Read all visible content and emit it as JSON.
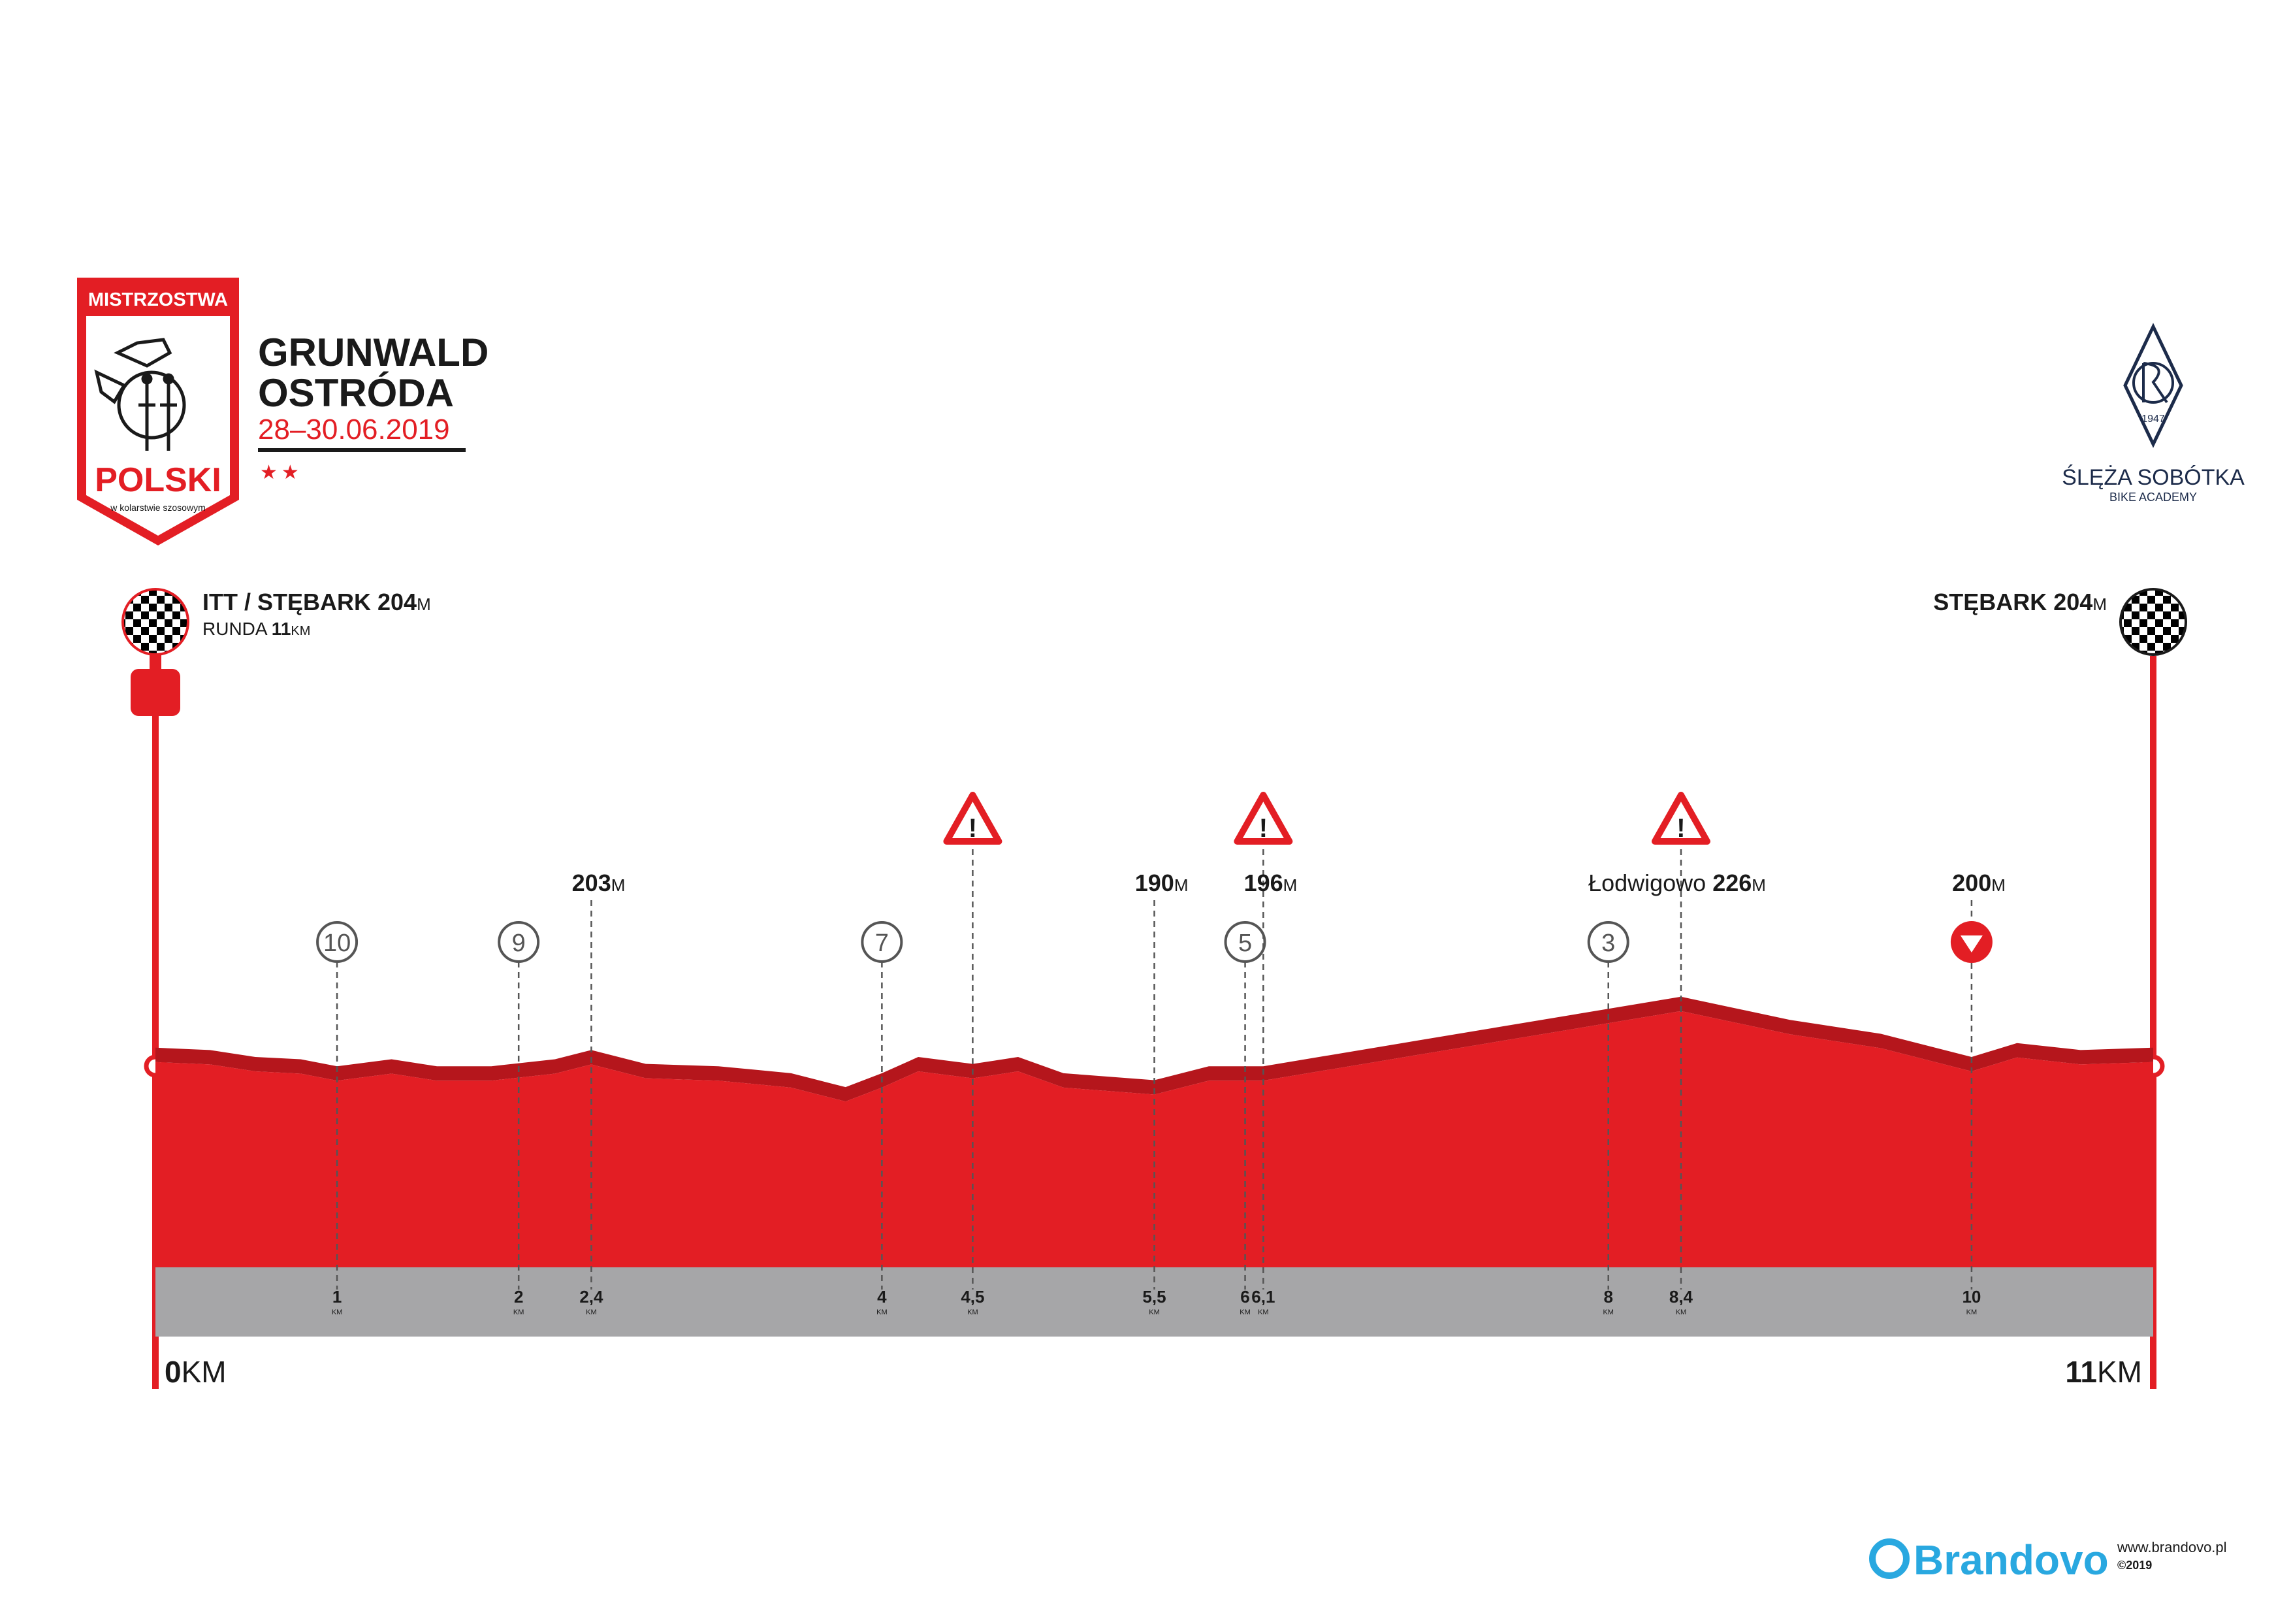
{
  "colors": {
    "red": "#e31e24",
    "red_dark": "#b5161c",
    "band": "#a6a6a8",
    "navy": "#1c2b4a",
    "brandovo": "#29a8e0",
    "text": "#1a1a1a"
  },
  "logo_left": {
    "top": "MISTRZOSTWA",
    "main": "POLSKI",
    "sub": "w kolarstwie szosowym"
  },
  "event": {
    "line1": "GRUNWALD",
    "line2": "OSTRÓDA",
    "dates": "28–30.06.2019",
    "stars": "★★"
  },
  "logo_right": {
    "year": "1947",
    "name": "ŚLĘŻA SOBÓTKA",
    "sub": "BIKE ACADEMY"
  },
  "start": {
    "name": "ITT / STĘBARK 204",
    "unit": "M",
    "round_label": "RUNDA ",
    "round_value": "11",
    "round_unit": "KM"
  },
  "finish": {
    "name": "STĘBARK 204",
    "unit": "M"
  },
  "distance": {
    "start": "0",
    "end": "11",
    "unit": "KM"
  },
  "footer": {
    "brand": "Brandovo",
    "url": "www.brandovo.pl",
    "copyright": "©2019"
  },
  "chart_data": {
    "type": "area",
    "title": "",
    "xlabel": "",
    "ylabel": "",
    "xlim": [
      0,
      11
    ],
    "x_unit": "KM",
    "y_unit": "M",
    "profile": [
      {
        "x": 0.0,
        "y": 204
      },
      {
        "x": 0.3,
        "y": 203
      },
      {
        "x": 0.55,
        "y": 200
      },
      {
        "x": 0.8,
        "y": 199
      },
      {
        "x": 1.0,
        "y": 196
      },
      {
        "x": 1.3,
        "y": 199
      },
      {
        "x": 1.55,
        "y": 196
      },
      {
        "x": 1.85,
        "y": 196
      },
      {
        "x": 2.2,
        "y": 199
      },
      {
        "x": 2.4,
        "y": 203
      },
      {
        "x": 2.7,
        "y": 197
      },
      {
        "x": 3.1,
        "y": 196
      },
      {
        "x": 3.5,
        "y": 193
      },
      {
        "x": 3.8,
        "y": 187
      },
      {
        "x": 4.0,
        "y": 193
      },
      {
        "x": 4.2,
        "y": 200
      },
      {
        "x": 4.5,
        "y": 197
      },
      {
        "x": 4.75,
        "y": 200
      },
      {
        "x": 5.0,
        "y": 193
      },
      {
        "x": 5.5,
        "y": 190
      },
      {
        "x": 5.8,
        "y": 196
      },
      {
        "x": 6.1,
        "y": 196
      },
      {
        "x": 8.4,
        "y": 226
      },
      {
        "x": 8.7,
        "y": 221
      },
      {
        "x": 9.0,
        "y": 216
      },
      {
        "x": 9.5,
        "y": 210
      },
      {
        "x": 10.0,
        "y": 200
      },
      {
        "x": 10.25,
        "y": 206
      },
      {
        "x": 10.6,
        "y": 203
      },
      {
        "x": 11.0,
        "y": 204
      }
    ],
    "ticks": [
      {
        "x": 1,
        "label": "1",
        "countdown": "10"
      },
      {
        "x": 2,
        "label": "2",
        "countdown": "9"
      },
      {
        "x": 2.4,
        "label": "2,4",
        "elev": "203",
        "elev_unit": "M"
      },
      {
        "x": 4,
        "label": "4",
        "countdown": "7"
      },
      {
        "x": 4.5,
        "label": "4,5",
        "warning": true
      },
      {
        "x": 5.5,
        "label": "5,5",
        "elev": "190",
        "elev_unit": "M"
      },
      {
        "x": 6,
        "label": "6",
        "countdown": "5"
      },
      {
        "x": 6.1,
        "label": "6,1",
        "elev": "196",
        "elev_unit": "M",
        "warning": true
      },
      {
        "x": 8,
        "label": "8",
        "countdown": "3"
      },
      {
        "x": 8.4,
        "label": "8,4",
        "elev": "226",
        "elev_unit": "M",
        "place": "Łodwigowo ",
        "warning": true
      },
      {
        "x": 10,
        "label": "10",
        "elev": "200",
        "elev_unit": "M",
        "descent_marker": true
      }
    ],
    "tick_unit": "KM",
    "legend": "none",
    "grid": false
  }
}
